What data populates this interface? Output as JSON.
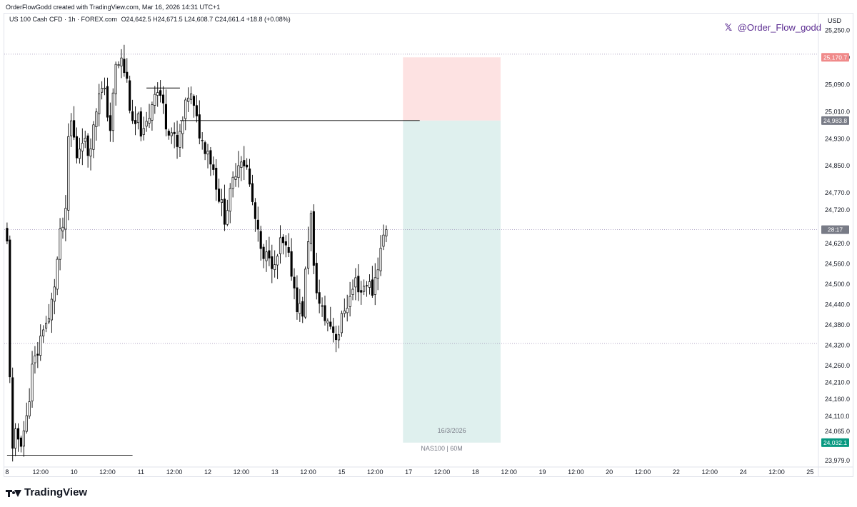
{
  "header": {
    "created_by": "OrderFlowGodd created with TradingView.com, Mar 16, 2026 14:31 UTC+1"
  },
  "legend": {
    "instrument": "US 100 Cash CFD · 1h · FOREX.com",
    "ohlc": "O24,642.5 H24,671.5 L24,608.7 C24,661.4 +18.8 (+0.08%)"
  },
  "watermark": {
    "icon": "x-logo-icon",
    "handle": "@Order_Flow_godd"
  },
  "footer": {
    "brand": "TradingView",
    "icon": "tradingview-logo-icon"
  },
  "chart_data": {
    "type": "candlestick",
    "symbol": "NAS100",
    "timeframe": "60M",
    "currency_label": "USD",
    "ylim": [
      23960,
      25300
    ],
    "y_ticks": [
      25250,
      25170,
      25090,
      25010,
      24930,
      24850,
      24770,
      24720,
      24620,
      24560,
      24500,
      24440,
      24380,
      24320,
      24260,
      24210,
      24160,
      24110,
      24065,
      23979
    ],
    "y_tick_labels": [
      "25,250.0",
      "25,170.0",
      "25,090.0",
      "25,010.0",
      "24,930.0",
      "24,850.0",
      "24,770.0",
      "24,720.0",
      "24,620.0",
      "24,560.0",
      "24,500.0",
      "24,440.0",
      "24,380.0",
      "24,320.0",
      "24,260.0",
      "24,210.0",
      "24,160.0",
      "24,110.0",
      "24,065.0",
      "23,979.0"
    ],
    "x_ticks": [
      {
        "label": "8",
        "x": 0
      },
      {
        "label": "12:00",
        "x": 12
      },
      {
        "label": "10",
        "x": 24
      },
      {
        "label": "12:00",
        "x": 36
      },
      {
        "label": "11",
        "x": 48
      },
      {
        "label": "12:00",
        "x": 60
      },
      {
        "label": "12",
        "x": 72
      },
      {
        "label": "12:00",
        "x": 84
      },
      {
        "label": "13",
        "x": 96
      },
      {
        "label": "12:00",
        "x": 108
      },
      {
        "label": "15",
        "x": 120
      },
      {
        "label": "12:00",
        "x": 132
      },
      {
        "label": "17",
        "x": 144
      },
      {
        "label": "12:00",
        "x": 156
      },
      {
        "label": "18",
        "x": 168
      },
      {
        "label": "12:00",
        "x": 180
      },
      {
        "label": "19",
        "x": 192
      },
      {
        "label": "12:00",
        "x": 204
      },
      {
        "label": "20",
        "x": 216
      },
      {
        "label": "12:00",
        "x": 228
      },
      {
        "label": "22",
        "x": 240
      },
      {
        "label": "12:00",
        "x": 252
      },
      {
        "label": "24",
        "x": 264
      },
      {
        "label": "12:00",
        "x": 276
      },
      {
        "label": "25",
        "x": 288
      }
    ],
    "x_range": [
      -1,
      291
    ],
    "anchors": [
      [
        0,
        24620
      ],
      [
        1,
        24240
      ],
      [
        2,
        24000
      ],
      [
        3,
        24050
      ],
      [
        5,
        24040
      ],
      [
        7,
        24100
      ],
      [
        9,
        24250
      ],
      [
        11,
        24300
      ],
      [
        13,
        24380
      ],
      [
        15,
        24390
      ],
      [
        17,
        24500
      ],
      [
        19,
        24640
      ],
      [
        21,
        24700
      ],
      [
        22,
        24930
      ],
      [
        23,
        24980
      ],
      [
        25,
        24880
      ],
      [
        27,
        24940
      ],
      [
        29,
        24890
      ],
      [
        31,
        24960
      ],
      [
        33,
        25080
      ],
      [
        35,
        25060
      ],
      [
        37,
        24960
      ],
      [
        39,
        25140
      ],
      [
        41,
        25160
      ],
      [
        43,
        25100
      ],
      [
        45,
        24960
      ],
      [
        47,
        24980
      ],
      [
        49,
        24940
      ],
      [
        51,
        25000
      ],
      [
        53,
        25080
      ],
      [
        55,
        25060
      ],
      [
        57,
        24980
      ],
      [
        59,
        24950
      ],
      [
        61,
        24900
      ],
      [
        63,
        24980
      ],
      [
        65,
        25060
      ],
      [
        66,
        25050
      ],
      [
        68,
        24980
      ],
      [
        70,
        24920
      ],
      [
        72,
        24900
      ],
      [
        74,
        24840
      ],
      [
        76,
        24760
      ],
      [
        78,
        24700
      ],
      [
        80,
        24760
      ],
      [
        82,
        24840
      ],
      [
        84,
        24880
      ],
      [
        86,
        24840
      ],
      [
        88,
        24740
      ],
      [
        90,
        24640
      ],
      [
        92,
        24560
      ],
      [
        94,
        24600
      ],
      [
        96,
        24540
      ],
      [
        98,
        24620
      ],
      [
        100,
        24600
      ],
      [
        102,
        24540
      ],
      [
        104,
        24440
      ],
      [
        106,
        24420
      ],
      [
        108,
        24640
      ],
      [
        109,
        24700
      ],
      [
        110,
        24540
      ],
      [
        112,
        24440
      ],
      [
        114,
        24400
      ],
      [
        116,
        24380
      ],
      [
        118,
        24350
      ],
      [
        119,
        24360
      ],
      [
        121,
        24430
      ],
      [
        123,
        24460
      ],
      [
        125,
        24510
      ],
      [
        127,
        24480
      ],
      [
        129,
        24510
      ],
      [
        131,
        24480
      ],
      [
        133,
        24560
      ],
      [
        135,
        24640
      ],
      [
        136,
        24661.4
      ]
    ],
    "reference_lines": [
      {
        "name": "high-level-line",
        "value": 25180,
        "style": "dotted"
      },
      {
        "name": "current-price-line",
        "value": 24661.4,
        "style": "dotted"
      },
      {
        "name": "low-level-line",
        "value": 24325,
        "style": "dotted"
      }
    ],
    "drawn_lines": [
      {
        "name": "resistance-line-upper",
        "value": 25080,
        "x_start": 50,
        "x_end": 62
      },
      {
        "name": "entry-level-line",
        "value": 24983.8,
        "x_start": 62,
        "x_end": 148
      },
      {
        "name": "low-support-line",
        "value": 23995,
        "x_start": 0,
        "x_end": 45
      }
    ],
    "short_position": {
      "x_start": 142,
      "x_end": 177,
      "stop_loss": 25170.7,
      "entry": 24983.8,
      "take_profit": 24032.1,
      "stop_color": "#fde2e2",
      "target_color": "#dff0ee"
    },
    "price_tags": [
      {
        "name": "stop-loss-tag",
        "value": 25170.7,
        "label": "25,170.7",
        "color": "#f08a8a"
      },
      {
        "name": "entry-tag",
        "value": 24983.8,
        "label": "24,983.8",
        "color": "#787b86"
      },
      {
        "name": "countdown-tag",
        "value": 24661.4,
        "label": "28:17",
        "color": "#787b86"
      },
      {
        "name": "take-profit-tag",
        "value": 24032.1,
        "label": "24,032.1",
        "color": "#089981"
      }
    ],
    "position_labels": {
      "date": "16/3/2026",
      "symbol_timeframe": "NAS100 | 60M"
    }
  },
  "colors": {
    "candle": "#000000",
    "grid_dotted": "#9c8fb5",
    "axis_text": "#131722",
    "handle": "#5b2c91"
  }
}
